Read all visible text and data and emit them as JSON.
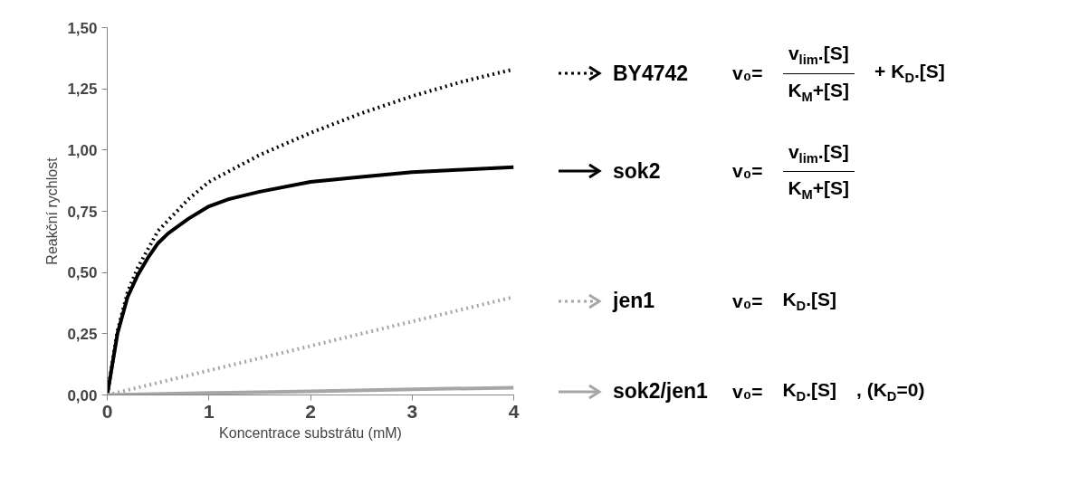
{
  "chart_data": {
    "type": "line",
    "xlabel": "Koncentrace substrátu (mM)",
    "ylabel": "Reakční rychlost",
    "xlim": [
      0,
      4
    ],
    "xticks": [
      0,
      1,
      2,
      3,
      4
    ],
    "ylim": [
      0,
      1.5
    ],
    "yticks": [
      {
        "value": 0,
        "label": "0,00"
      },
      {
        "value": 0.25,
        "label": "0,25"
      },
      {
        "value": 0.5,
        "label": "0,50"
      },
      {
        "value": 0.75,
        "label": "0,75"
      },
      {
        "value": 1.0,
        "label": "1,00"
      },
      {
        "value": 1.25,
        "label": "1,25"
      },
      {
        "value": 1.5,
        "label": "1,50"
      }
    ],
    "grid": false,
    "legend": "right",
    "series": [
      {
        "name": "BY4742",
        "color": "#000000",
        "line_style": "dotted",
        "x": [
          0,
          0.1,
          0.2,
          0.3,
          0.5,
          0.8,
          1.0,
          1.5,
          2.0,
          2.5,
          3.0,
          3.5,
          4.0
        ],
        "values": [
          0,
          0.26,
          0.42,
          0.52,
          0.67,
          0.8,
          0.87,
          0.98,
          1.07,
          1.15,
          1.22,
          1.28,
          1.33
        ]
      },
      {
        "name": "sok2",
        "color": "#000000",
        "line_style": "solid",
        "x": [
          0,
          0.1,
          0.2,
          0.3,
          0.4,
          0.5,
          0.6,
          0.8,
          1.0,
          1.2,
          1.5,
          2.0,
          2.5,
          3.0,
          3.5,
          4.0
        ],
        "values": [
          0,
          0.25,
          0.4,
          0.49,
          0.56,
          0.62,
          0.66,
          0.72,
          0.77,
          0.8,
          0.83,
          0.87,
          0.89,
          0.91,
          0.92,
          0.93
        ]
      },
      {
        "name": "jen1",
        "color": "#a6a6a6",
        "line_style": "dotted",
        "x": [
          0,
          1,
          2,
          3,
          4
        ],
        "values": [
          0,
          0.1,
          0.2,
          0.3,
          0.4
        ]
      },
      {
        "name": "sok2/jen1",
        "color": "#a6a6a6",
        "line_style": "solid",
        "x": [
          0,
          1,
          2,
          3,
          4
        ],
        "values": [
          0,
          0.008,
          0.015,
          0.023,
          0.03
        ]
      }
    ],
    "annotations": [
      "v₀=",
      "v$_{lim}$.[S]\nK$_{M}$+[S]",
      "+ K$_{D}$.[S]",
      "v₀=",
      "v$_{lim}$.[S]\nK$_{M}$+[S]",
      "v₀=",
      "K$_{D}$.[S]",
      "v₀=",
      "K$_{D}$.[S]",
      ", (K$_{D}$=0)"
    ]
  }
}
